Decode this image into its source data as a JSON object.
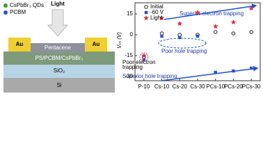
{
  "diagram": {
    "legend": [
      "CsPbBr₃ QDs",
      "PCBM"
    ],
    "light": "Light",
    "pentacene": "Pentacene",
    "electrodes": [
      "Au",
      "Au"
    ],
    "blend": "PS/PCBM/CsPbBr₃",
    "dielectric": "SiO₂",
    "substrate": "Si"
  },
  "chart_data": {
    "type": "scatter",
    "ylabel": "Vₜₕ (V)",
    "categories": [
      "P-10",
      "Cs-10",
      "Cs-20",
      "Cs-30",
      "PCs-10",
      "PCs-20",
      "PCs-30"
    ],
    "series": [
      {
        "name": "Initial",
        "color": "#222222",
        "values": [
          -16,
          1,
          0,
          0,
          2,
          1,
          2
        ]
      },
      {
        "name": "-60 V",
        "color": "#2a4fd0",
        "values": [
          -18,
          -1,
          -2,
          -1,
          -27,
          -26,
          -24
        ]
      },
      {
        "name": "Light",
        "color": "#e03040",
        "values": [
          -15,
          12,
          8,
          16,
          6,
          9,
          19
        ]
      }
    ],
    "ylim": [
      -33,
      23
    ],
    "yticks": [
      15,
      0,
      -15,
      -30
    ],
    "annotations": [
      "Superior electron trapping",
      "Poor hole trapping",
      "Poor electron",
      "trapping",
      "Superior hole trapping"
    ]
  }
}
